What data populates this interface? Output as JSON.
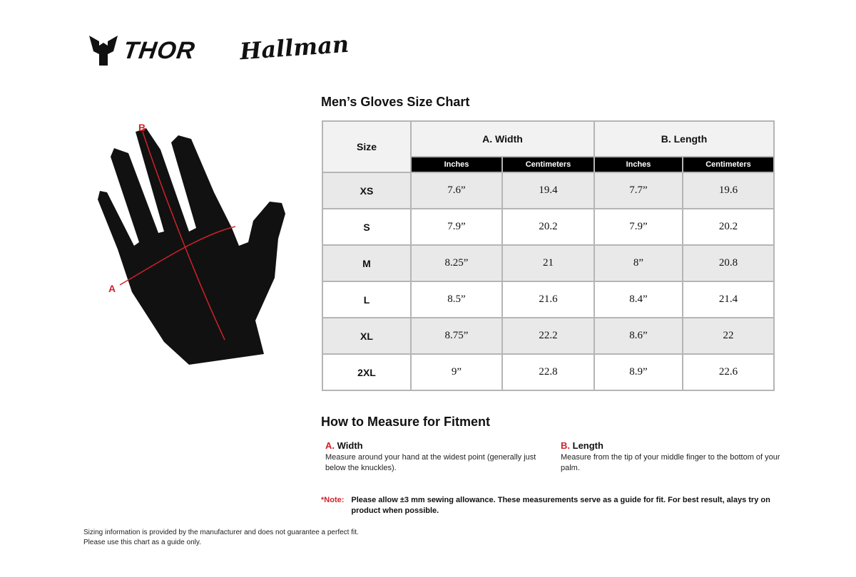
{
  "brands": {
    "primary": "THOR",
    "secondary": "Hallman"
  },
  "title": "Men’s Gloves Size Chart",
  "diagram": {
    "label_a": "A",
    "label_b": "B",
    "accent": "#d0222a"
  },
  "table": {
    "size_header": "Size",
    "groups": [
      "A. Width",
      "B. Length"
    ],
    "units": [
      "Inches",
      "Centimeters",
      "Inches",
      "Centimeters"
    ],
    "rows": [
      [
        "XS",
        "7.6”",
        "19.4",
        "7.7”",
        "19.6"
      ],
      [
        "S",
        "7.9”",
        "20.2",
        "7.9”",
        "20.2"
      ],
      [
        "M",
        "8.25”",
        "21",
        "8”",
        "20.8"
      ],
      [
        "L",
        "8.5”",
        "21.6",
        "8.4”",
        "21.4"
      ],
      [
        "XL",
        "8.75”",
        "22.2",
        "8.6”",
        "22"
      ],
      [
        "2XL",
        "9”",
        "22.8",
        "8.9”",
        "22.6"
      ]
    ]
  },
  "how": {
    "title": "How to Measure for Fitment",
    "items": [
      {
        "letter": "A.",
        "name": "Width",
        "text": "Measure around your hand at the widest point (generally just below the knuckles)."
      },
      {
        "letter": "B.",
        "name": "Length",
        "text": "Measure from the tip of your middle finger to the bottom of your palm."
      }
    ]
  },
  "note": {
    "key": "*Note:",
    "text": "Please allow ±3 mm sewing allowance. These measurements serve as a guide for fit. For best result, alays try on product when possible."
  },
  "footer": [
    "Sizing information is provided by the manufacturer and does not guarantee a perfect fit.",
    "Please use this chart as a guide only."
  ]
}
